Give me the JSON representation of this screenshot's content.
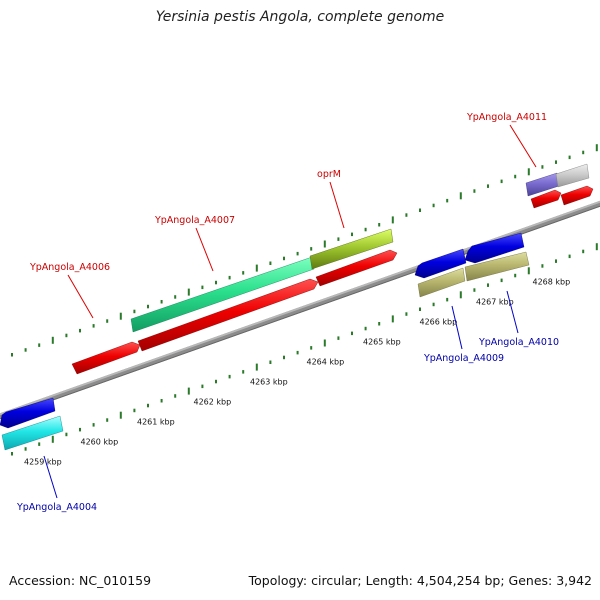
{
  "title": "Yersinia pestis Angola, complete genome",
  "footer": {
    "accession": "Accession: NC_010159",
    "topology": "Topology: circular; Length: 4,504,254 bp; Genes: 3,942"
  },
  "colors": {
    "backbone": "#8c8c8c",
    "tick": "#2a7a2a",
    "label_forward": "#cc0000",
    "label_reverse": "#0000aa",
    "leader_forward": "#dd0000",
    "leader_reverse": "#0000cc"
  },
  "ticks": [
    {
      "label": "4259 kbp"
    },
    {
      "label": "4260 kbp"
    },
    {
      "label": "4261 kbp"
    },
    {
      "label": "4262 kbp"
    },
    {
      "label": "4263 kbp"
    },
    {
      "label": "4264 kbp"
    },
    {
      "label": "4265 kbp"
    },
    {
      "label": "4266 kbp"
    },
    {
      "label": "4267 kbp"
    },
    {
      "label": "4268 kbp"
    }
  ],
  "gene_labels": [
    {
      "name": "ypangola-a4011-label",
      "text": "YpAngola_A4011",
      "strand": "forward"
    },
    {
      "name": "oprm-label",
      "text": "oprM",
      "strand": "forward"
    },
    {
      "name": "ypangola-a4007-label",
      "text": "YpAngola_A4007",
      "strand": "forward"
    },
    {
      "name": "ypangola-a4006-label",
      "text": "YpAngola_A4006",
      "strand": "forward"
    },
    {
      "name": "ypangola-a4009-label",
      "text": "YpAngola_A4009",
      "strand": "reverse"
    },
    {
      "name": "ypangola-a4010-label",
      "text": "YpAngola_A4010",
      "strand": "reverse"
    },
    {
      "name": "ypangola-a4004-label",
      "text": "YpAngola_A4004",
      "strand": "reverse"
    }
  ]
}
